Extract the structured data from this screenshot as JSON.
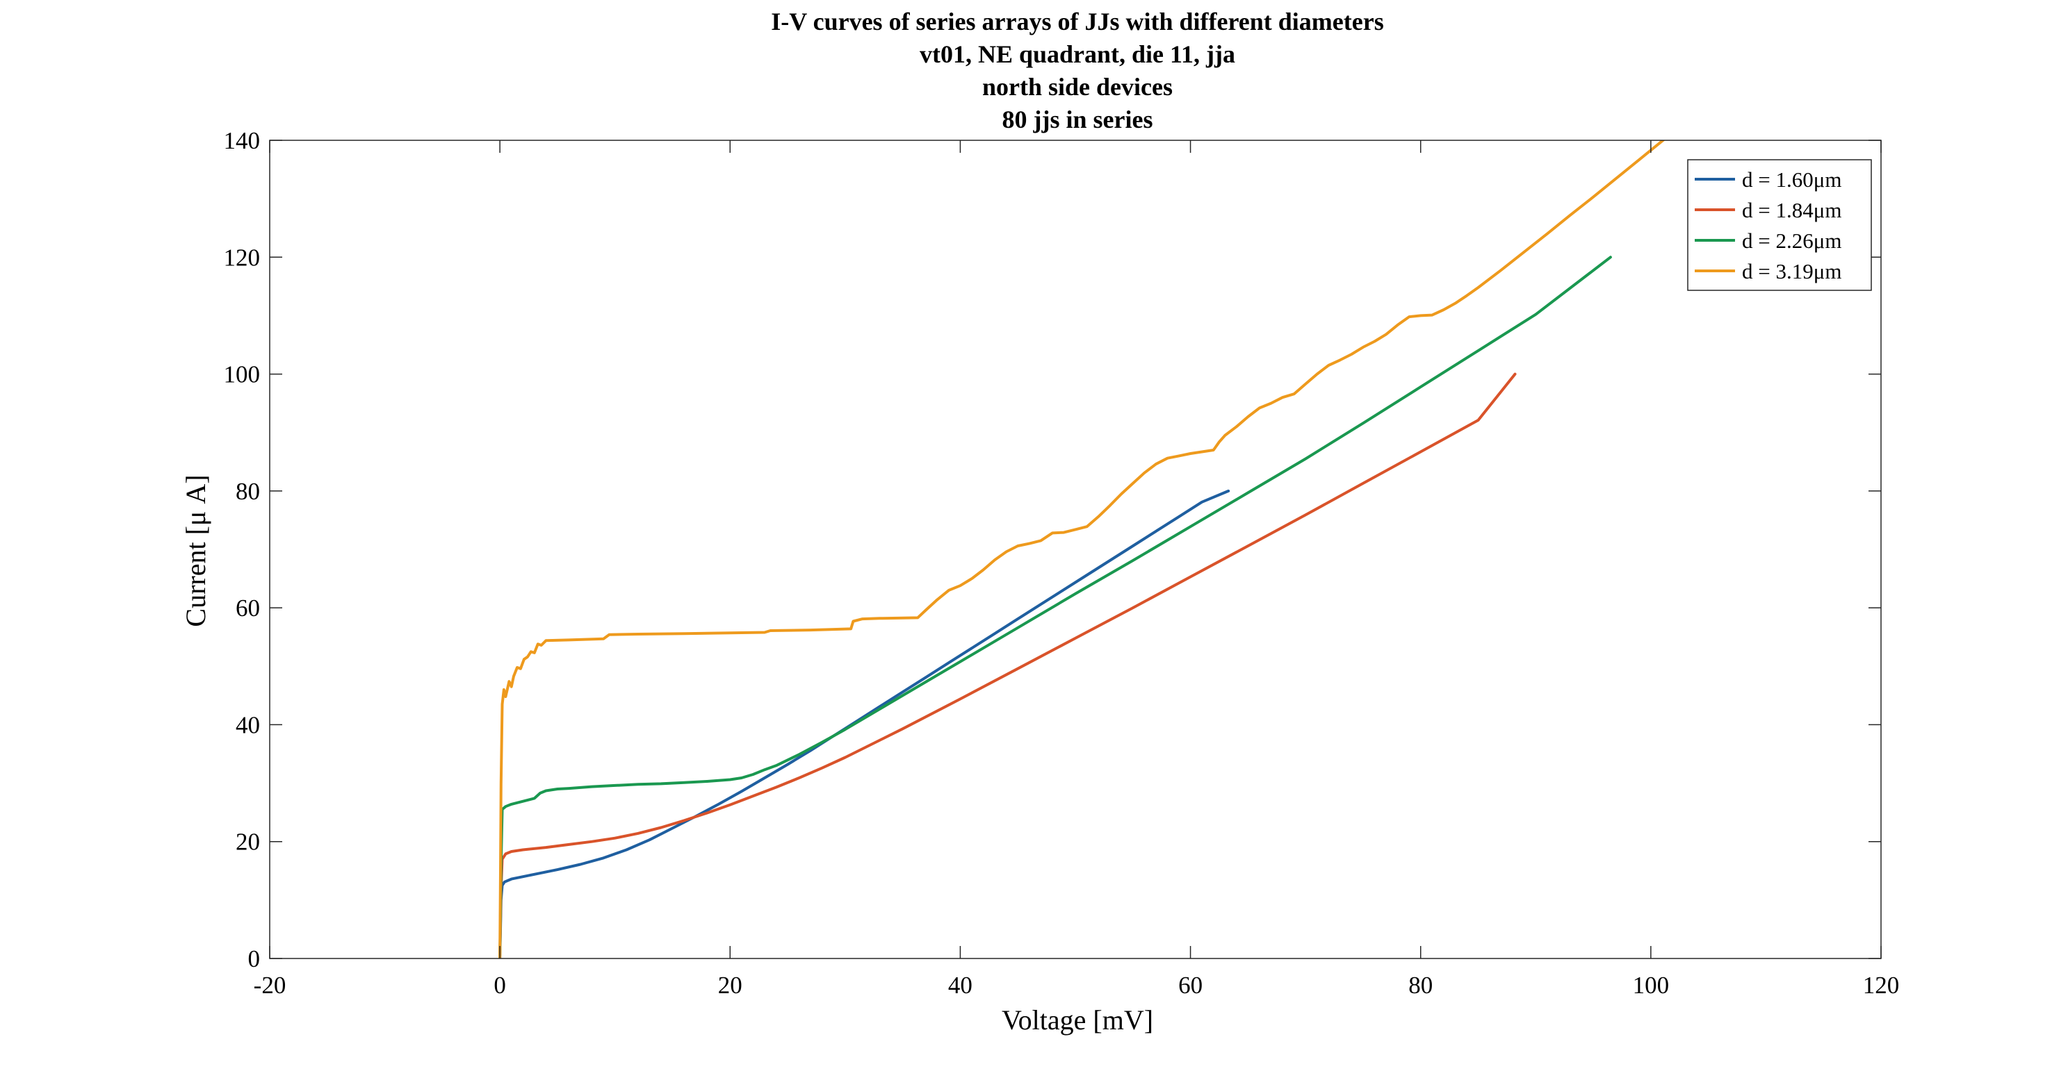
{
  "chart_data": {
    "type": "line",
    "title_lines": [
      "I-V curves of series arrays of JJs with different diameters",
      "vt01, NE quadrant, die 11, jja",
      "north side devices",
      "80 jjs in series"
    ],
    "xlabel": "Voltage [mV]",
    "ylabel": "Current [μ A]",
    "xlim": [
      -20,
      120
    ],
    "ylim": [
      0,
      140
    ],
    "xticks": [
      -20,
      0,
      20,
      40,
      60,
      80,
      100,
      120
    ],
    "yticks": [
      0,
      20,
      40,
      60,
      80,
      100,
      120,
      140
    ],
    "xtick_labels": [
      "-20",
      "0",
      "20",
      "40",
      "60",
      "80",
      "100",
      "120"
    ],
    "ytick_labels": [
      "0",
      "20",
      "40",
      "60",
      "80",
      "100",
      "120",
      "140"
    ],
    "grid": false,
    "legend_position": "top-right",
    "series": [
      {
        "name": "d = 1.60μm",
        "color": "#1f5fa0",
        "x": [
          0,
          0.05,
          0.1,
          0.2,
          0.4,
          1,
          2,
          3,
          5,
          7,
          9,
          11,
          13,
          15,
          17,
          19,
          21,
          23,
          25,
          27,
          29,
          31,
          33,
          35,
          37,
          39,
          41,
          43,
          45,
          47,
          49,
          51,
          53,
          55,
          57,
          59,
          61,
          63.3
        ],
        "y": [
          0,
          5,
          10,
          12.5,
          13.1,
          13.6,
          14.0,
          14.4,
          15.2,
          16.1,
          17.2,
          18.6,
          20.3,
          22.3,
          24.3,
          26.4,
          28.6,
          30.9,
          33.2,
          35.6,
          38.1,
          40.6,
          43.1,
          45.6,
          48.1,
          50.6,
          53.1,
          55.6,
          58.1,
          60.6,
          63.1,
          65.6,
          68.1,
          70.6,
          73.1,
          75.6,
          78.1,
          80.0
        ]
      },
      {
        "name": "d = 1.84μm",
        "color": "#d9532a",
        "x": [
          0,
          0.05,
          0.1,
          0.2,
          0.5,
          1,
          2,
          4,
          6,
          8,
          10,
          12,
          14,
          16,
          18,
          20,
          22,
          24,
          26,
          28,
          30,
          35,
          40,
          45,
          50,
          55,
          60,
          65,
          70,
          75,
          80,
          85,
          88.2
        ],
        "y": [
          0,
          6,
          12,
          17.0,
          17.9,
          18.3,
          18.6,
          19.0,
          19.5,
          20.0,
          20.6,
          21.4,
          22.4,
          23.6,
          24.9,
          26.3,
          27.8,
          29.3,
          30.9,
          32.6,
          34.4,
          39.3,
          44.4,
          49.6,
          54.8,
          60.0,
          65.3,
          70.6,
          75.9,
          81.3,
          86.7,
          92.1,
          100.0
        ]
      },
      {
        "name": "d = 2.26μm",
        "color": "#1a9850",
        "x": [
          0,
          0.05,
          0.1,
          0.2,
          0.5,
          1,
          2,
          3,
          3.5,
          4,
          5,
          6,
          8,
          10,
          12,
          14,
          16,
          18,
          20,
          21,
          22,
          23,
          24,
          26,
          28,
          30,
          35,
          40,
          45,
          50,
          55,
          60,
          65,
          70,
          75,
          80,
          85,
          90,
          96.5
        ],
        "y": [
          0,
          8,
          16,
          25.5,
          26.0,
          26.4,
          26.9,
          27.4,
          28.3,
          28.7,
          29.0,
          29.1,
          29.4,
          29.6,
          29.8,
          29.9,
          30.1,
          30.3,
          30.6,
          30.9,
          31.5,
          32.3,
          33.0,
          34.9,
          37.0,
          39.2,
          45.0,
          50.8,
          56.6,
          62.4,
          68.1,
          73.9,
          79.7,
          85.5,
          91.6,
          97.8,
          104.0,
          110.2,
          120.0
        ]
      },
      {
        "name": "d = 3.19μm",
        "color": "#ee9a1d",
        "x": [
          0,
          0.05,
          0.1,
          0.2,
          0.35,
          0.5,
          0.8,
          1.0,
          1.2,
          1.5,
          1.8,
          2.1,
          2.4,
          2.7,
          3.0,
          3.3,
          3.6,
          4,
          6,
          9,
          9.5,
          12,
          16,
          20,
          23,
          23.5,
          27,
          30.5,
          30.7,
          31.5,
          33,
          36.3,
          37,
          38,
          39,
          40,
          41,
          42,
          43,
          44,
          45,
          46,
          47,
          48,
          49,
          50,
          51,
          52,
          53,
          54,
          55,
          56,
          57,
          58,
          59,
          60,
          61,
          62,
          62.5,
          63,
          64,
          65,
          66,
          67,
          68,
          69,
          70,
          71,
          72,
          73,
          74,
          75,
          76,
          77,
          78,
          79,
          80,
          81,
          82,
          83,
          84,
          85,
          87,
          89,
          91,
          93,
          95,
          97,
          99,
          101,
          103,
          105.2
        ],
        "y": [
          0,
          15,
          30,
          43.5,
          46.0,
          44.8,
          47.4,
          46.5,
          48.3,
          49.8,
          49.6,
          51.2,
          51.6,
          52.5,
          52.3,
          53.8,
          53.6,
          54.4,
          54.5,
          54.7,
          55.4,
          55.5,
          55.6,
          55.7,
          55.8,
          56.1,
          56.2,
          56.4,
          57.7,
          58.1,
          58.2,
          58.3,
          59.6,
          61.4,
          63.0,
          63.8,
          65.0,
          66.5,
          68.2,
          69.6,
          70.6,
          71.0,
          71.5,
          72.8,
          72.9,
          73.4,
          73.9,
          75.6,
          77.5,
          79.5,
          81.3,
          83.1,
          84.6,
          85.6,
          86.0,
          86.4,
          86.7,
          87.0,
          88.4,
          89.5,
          91.0,
          92.7,
          94.2,
          95.0,
          96.0,
          96.6,
          98.3,
          100.0,
          101.5,
          102.4,
          103.4,
          104.6,
          105.6,
          106.8,
          108.4,
          109.8,
          110.0,
          110.1,
          111.0,
          112.1,
          113.4,
          114.8,
          117.8,
          120.9,
          124.0,
          127.2,
          130.3,
          133.5,
          136.7,
          139.9,
          143.1,
          146.3
        ]
      }
    ]
  }
}
